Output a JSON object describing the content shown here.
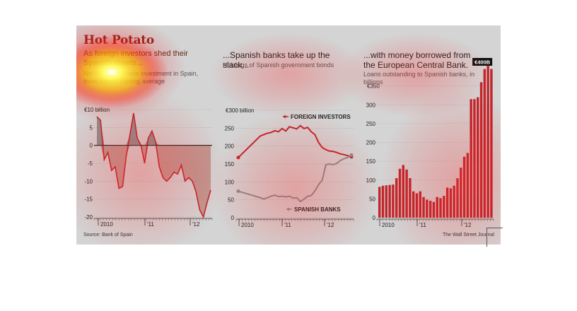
{
  "headline": "Hot Potato",
  "colors": {
    "red": "#c0272d",
    "darkred": "#9b1c1f",
    "gray": "#8c8c8c",
    "background": "#d4d4d4"
  },
  "panels": [
    {
      "title": "As foreign investors shed their Spanish assets...",
      "note": "Net foreign portfolio investment in Spain, three-month moving average",
      "unit_label": "€10 billion",
      "source": "Source: Bank of Spain"
    },
    {
      "title": "...Spanish banks take up the slack...",
      "note": "Holdings of Spanish government bonds",
      "unit_label": "€300 billion"
    },
    {
      "title": "...with money borrowed from the European Central Bank.",
      "note": "Loans outstanding to Spanish banks, in billions",
      "unit_label": "€350",
      "callout": "€400B",
      "credit": "The Wall Street Journal"
    }
  ],
  "chart_data": [
    {
      "type": "area",
      "title": "As foreign investors shed their Spanish assets...",
      "ylabel": "€10 billion",
      "ylim": [
        -20,
        10
      ],
      "yticks": [
        "10",
        "5",
        "0",
        "-5",
        "-10",
        "-15",
        "-20"
      ],
      "xticks": [
        "2010",
        "'11",
        "'12"
      ],
      "x_start": "2009-07",
      "x_end": "2012-08",
      "values": [
        8,
        7,
        -4,
        -2,
        -7,
        -6,
        -12,
        -11.5,
        -3,
        3,
        9,
        2,
        0,
        -5,
        2,
        4,
        1,
        -6,
        -9,
        -10,
        -9,
        -7.5,
        -8,
        -5.5,
        -10,
        -9,
        -10,
        -13,
        -18,
        -20,
        -16,
        -12.5
      ]
    },
    {
      "type": "line",
      "title": "...Spanish banks take up the slack...",
      "ylabel": "€300 billion",
      "ylim": [
        0,
        300
      ],
      "yticks": [
        "300",
        "250",
        "200",
        "150",
        "100",
        "50",
        "0"
      ],
      "xticks": [
        "2010",
        "'11",
        "'12"
      ],
      "x_start": "2009-12",
      "x_end": "2012-08",
      "series": [
        {
          "name": "FOREIGN INVESTORS",
          "values": [
            168,
            178,
            188,
            198,
            208,
            218,
            228,
            232,
            236,
            238,
            243,
            240,
            249,
            242,
            254,
            251,
            248,
            257,
            249,
            252,
            240,
            232,
            210,
            196,
            190,
            186,
            185,
            182,
            178,
            176,
            173,
            170
          ]
        },
        {
          "name": "SPANISH BANKS",
          "values": [
            74,
            71,
            68,
            65,
            62,
            59,
            56,
            52,
            56,
            60,
            63,
            59,
            60,
            58,
            60,
            55,
            56,
            45,
            52,
            60,
            62,
            75,
            92,
            105,
            148,
            150,
            148,
            152,
            160,
            165,
            168,
            175
          ]
        }
      ]
    },
    {
      "type": "bar",
      "title": "...with money borrowed from the European Central Bank.",
      "ylabel": "€350",
      "ylim": [
        0,
        400
      ],
      "yticks": [
        "350",
        "300",
        "250",
        "200",
        "150",
        "100",
        "50",
        "0"
      ],
      "xticks": [
        "2010",
        "'11",
        "'12"
      ],
      "x_start": "2009-06",
      "x_end": "2012-08",
      "values": [
        82,
        85,
        86,
        87,
        88,
        105,
        130,
        140,
        128,
        105,
        70,
        65,
        70,
        55,
        48,
        45,
        42,
        55,
        52,
        58,
        80,
        78,
        85,
        105,
        133,
        162,
        172,
        315,
        315,
        320,
        360,
        395,
        405,
        395
      ]
    }
  ]
}
